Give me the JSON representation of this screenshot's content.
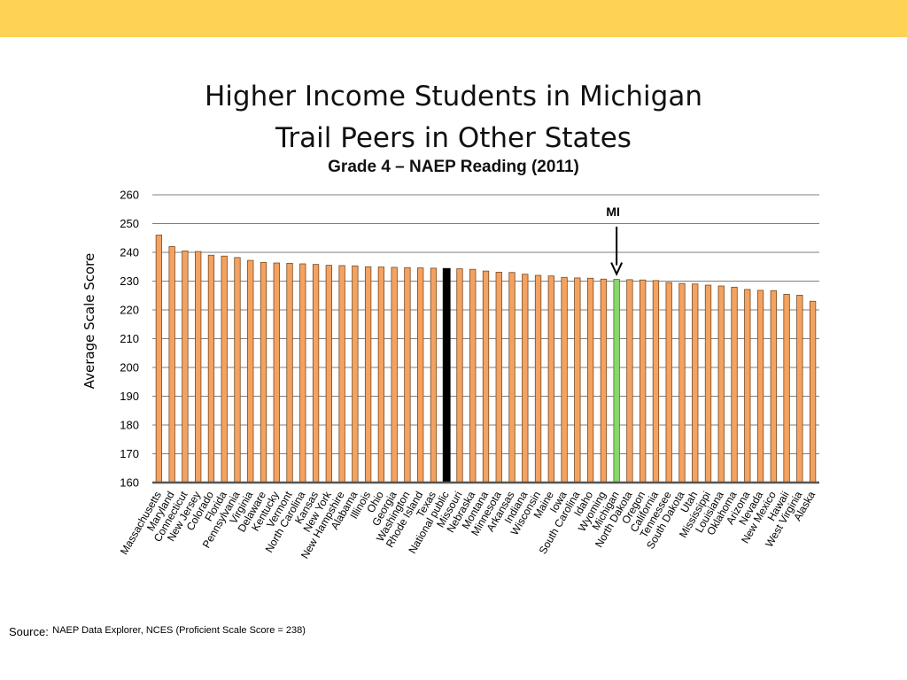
{
  "slide": {
    "title_line1": "Higher Income Students in Michigan",
    "title_line2": "Trail Peers in Other States",
    "subtitle": "Grade 4 – NAEP Reading (2011)",
    "source_label": "Source:",
    "source_text": "NAEP Data Explorer, NCES (Proficient Scale Score = 238)",
    "band_color": "#fdd355"
  },
  "chart_data": {
    "type": "bar",
    "title": "",
    "xlabel": "",
    "ylabel": "Average Scale Score",
    "ylim": [
      160,
      260
    ],
    "yticks": [
      160,
      170,
      180,
      190,
      200,
      210,
      220,
      230,
      240,
      250,
      260
    ],
    "grid": true,
    "legend": "none",
    "bar_color": "#f4a261",
    "bar_border": "#7a4a1e",
    "highlight_national_color": "#000000",
    "highlight_michigan_color": "#8bd66b",
    "annotation": {
      "text": "MI",
      "target": "Michigan"
    },
    "categories": [
      "Massachusetts",
      "Maryland",
      "Connecticut",
      "New Jersey",
      "Colorado",
      "Florida",
      "Pennsylvania",
      "Virginia",
      "Delaware",
      "Kentucky",
      "Vermont",
      "North Carolina",
      "Kansas",
      "New York",
      "New Hampshire",
      "Alabama",
      "Illinois",
      "Ohio",
      "Georgia",
      "Washington",
      "Rhode Island",
      "Texas",
      "National public",
      "Missouri",
      "Nebraska",
      "Montana",
      "Minnesota",
      "Arkansas",
      "Indiana",
      "Wisconsin",
      "Maine",
      "Iowa",
      "South Carolina",
      "Idaho",
      "Wyoming",
      "Michigan",
      "North Dakota",
      "Oregon",
      "California",
      "Tennessee",
      "South Dakota",
      "Utah",
      "Mississippi",
      "Louisiana",
      "Oklahoma",
      "Arizona",
      "Nevada",
      "New Mexico",
      "Hawaii",
      "West Virginia",
      "Alaska"
    ],
    "values": [
      246,
      242,
      240.5,
      240.3,
      239,
      238.7,
      238.2,
      237.2,
      236.5,
      236.3,
      236.2,
      236,
      235.8,
      235.5,
      235.4,
      235.3,
      235,
      234.9,
      234.8,
      234.7,
      234.6,
      234.5,
      234.4,
      234.3,
      234.1,
      233.5,
      233.1,
      233,
      232.4,
      232,
      231.8,
      231.3,
      231.1,
      231,
      230.7,
      230.6,
      230.5,
      230.4,
      230.2,
      229.5,
      229.2,
      229,
      228.6,
      228.3,
      227.9,
      227.1,
      226.8,
      226.7,
      225.4,
      225.1,
      223
    ]
  }
}
